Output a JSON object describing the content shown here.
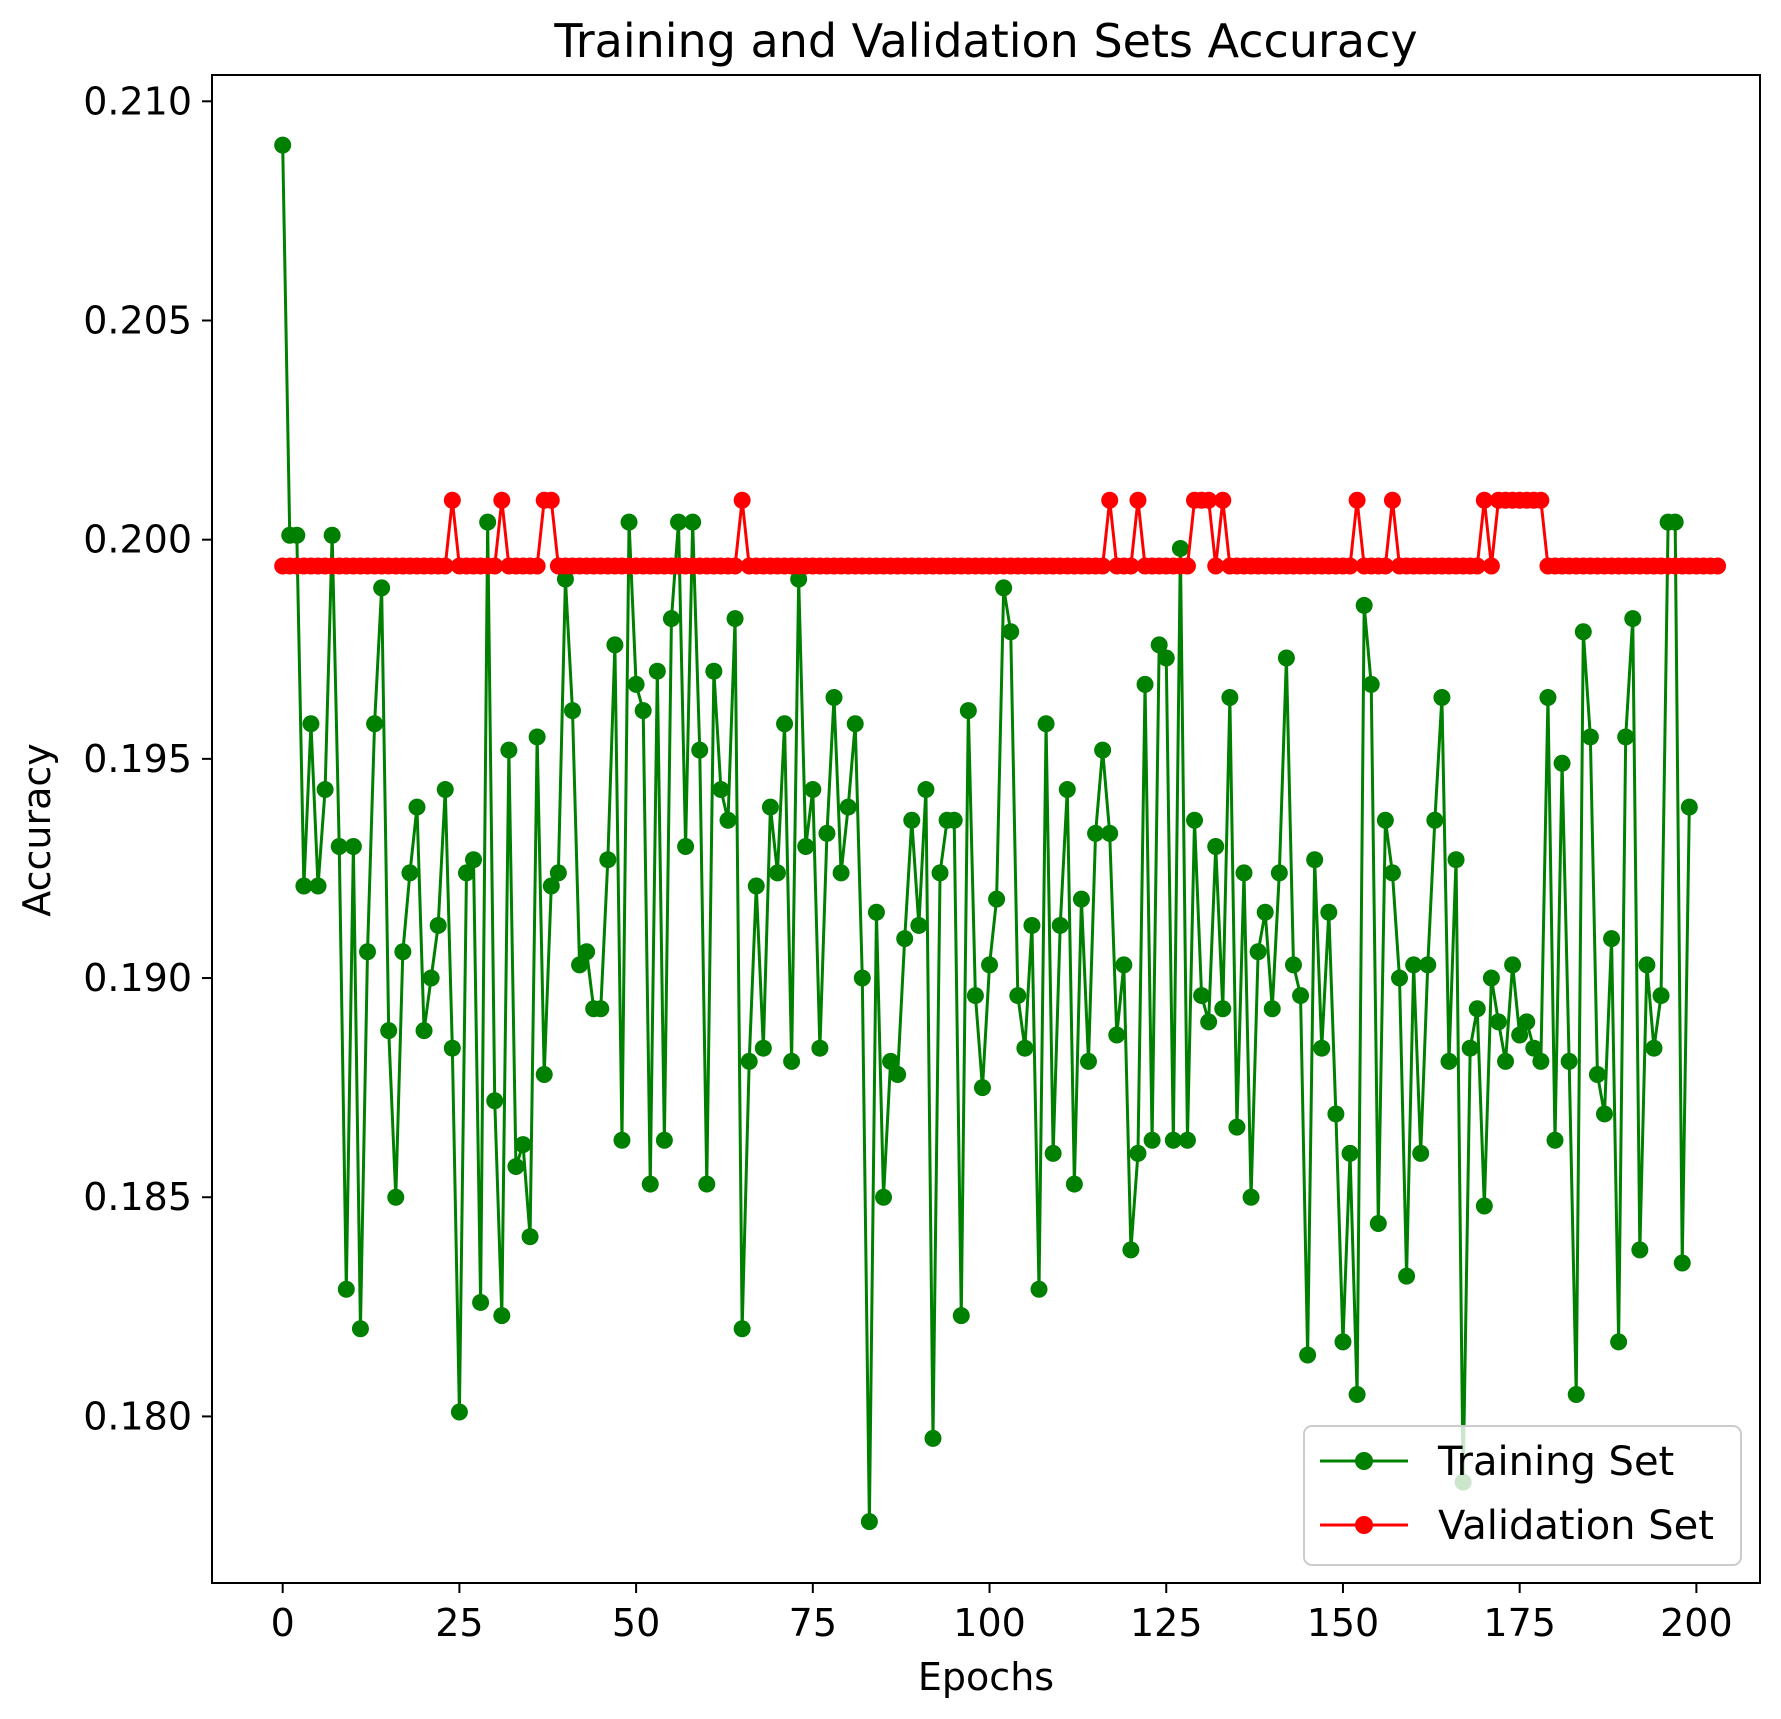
{
  "chart_data": {
    "type": "line",
    "title": "Training and Validation Sets Accuracy",
    "xlabel": "Epochs",
    "ylabel": "Accuracy",
    "xlim": [
      -10,
      209
    ],
    "ylim": [
      0.1762,
      0.2106
    ],
    "xticks": [
      0,
      25,
      50,
      75,
      100,
      125,
      150,
      175,
      200
    ],
    "yticks": [
      0.18,
      0.185,
      0.19,
      0.195,
      0.2,
      0.205,
      0.21
    ],
    "xtick_labels": [
      "0",
      "25",
      "50",
      "75",
      "100",
      "125",
      "150",
      "175",
      "200"
    ],
    "ytick_labels": [
      "0.180",
      "0.185",
      "0.190",
      "0.195",
      "0.200",
      "0.205",
      "0.210"
    ],
    "grid": false,
    "legend_position": "lower right",
    "series": [
      {
        "name": "Training Set",
        "color": "#008000",
        "marker": "circle",
        "values": [
          0.209,
          0.2001,
          0.2001,
          0.1921,
          0.1958,
          0.1921,
          0.1943,
          0.2001,
          0.193,
          0.1829,
          0.193,
          0.182,
          0.1906,
          0.1958,
          0.1989,
          0.1888,
          0.185,
          0.1906,
          0.1924,
          0.1939,
          0.1888,
          0.19,
          0.1912,
          0.1943,
          0.1884,
          0.1801,
          0.1924,
          0.1927,
          0.1826,
          0.2004,
          0.1872,
          0.1823,
          0.1952,
          0.1857,
          0.1862,
          0.1841,
          0.1955,
          0.1878,
          0.1921,
          0.1924,
          0.1991,
          0.1961,
          0.1903,
          0.1906,
          0.1893,
          0.1893,
          0.1927,
          0.1976,
          0.1863,
          0.2004,
          0.1967,
          0.1961,
          0.1853,
          0.197,
          0.1863,
          0.1982,
          0.2004,
          0.193,
          0.2004,
          0.1952,
          0.1853,
          0.197,
          0.1943,
          0.1936,
          0.1982,
          0.182,
          0.1881,
          0.1921,
          0.1884,
          0.1939,
          0.1924,
          0.1958,
          0.1881,
          0.1991,
          0.193,
          0.1943,
          0.1884,
          0.1933,
          0.1964,
          0.1924,
          0.1939,
          0.1958,
          0.19,
          0.1776,
          0.1915,
          0.185,
          0.1881,
          0.1878,
          0.1909,
          0.1936,
          0.1912,
          0.1943,
          0.1795,
          0.1924,
          0.1936,
          0.1936,
          0.1823,
          0.1961,
          0.1896,
          0.1875,
          0.1903,
          0.1918,
          0.1989,
          0.1979,
          0.1896,
          0.1884,
          0.1912,
          0.1829,
          0.1958,
          0.186,
          0.1912,
          0.1943,
          0.1853,
          0.1918,
          0.1881,
          0.1933,
          0.1952,
          0.1933,
          0.1887,
          0.1903,
          0.1838,
          0.186,
          0.1967,
          0.1863,
          0.1976,
          0.1973,
          0.1863,
          0.1998,
          0.1863,
          0.1936,
          0.1896,
          0.189,
          0.193,
          0.1893,
          0.1964,
          0.1866,
          0.1924,
          0.185,
          0.1906,
          0.1915,
          0.1893,
          0.1924,
          0.1973,
          0.1903,
          0.1896,
          0.1814,
          0.1927,
          0.1884,
          0.1915,
          0.1869,
          0.1817,
          0.186,
          0.1805,
          0.1985,
          0.1967,
          0.1844,
          0.1936,
          0.1924,
          0.19,
          0.1832,
          0.1903,
          0.186,
          0.1903,
          0.1936,
          0.1964,
          0.1881,
          0.1927,
          0.1785,
          0.1884,
          0.1893,
          0.1848,
          0.19,
          0.189,
          0.1881,
          0.1903,
          0.1887,
          0.189,
          0.1884,
          0.1881,
          0.1964,
          0.1863,
          0.1949,
          0.1881,
          0.1805,
          0.1979,
          0.1955,
          0.1878,
          0.1869,
          0.1909,
          0.1817,
          0.1955,
          0.1982,
          0.1838,
          0.1903,
          0.1884,
          0.1896,
          0.2004,
          0.2004,
          0.1835,
          0.1939
        ]
      },
      {
        "name": "Validation Set",
        "color": "#ff0000",
        "marker": "circle",
        "values": [
          0.1994,
          0.1994,
          0.1994,
          0.1994,
          0.1994,
          0.1994,
          0.1994,
          0.1994,
          0.1994,
          0.1994,
          0.1994,
          0.1994,
          0.1994,
          0.1994,
          0.1994,
          0.1994,
          0.1994,
          0.1994,
          0.1994,
          0.1994,
          0.1994,
          0.1994,
          0.1994,
          0.1994,
          0.2009,
          0.1994,
          0.1994,
          0.1994,
          0.1994,
          0.1994,
          0.1994,
          0.2009,
          0.1994,
          0.1994,
          0.1994,
          0.1994,
          0.1994,
          0.2009,
          0.2009,
          0.1994,
          0.1994,
          0.1994,
          0.1994,
          0.1994,
          0.1994,
          0.1994,
          0.1994,
          0.1994,
          0.1994,
          0.1994,
          0.1994,
          0.1994,
          0.1994,
          0.1994,
          0.1994,
          0.1994,
          0.1994,
          0.1994,
          0.1994,
          0.1994,
          0.1994,
          0.1994,
          0.1994,
          0.1994,
          0.1994,
          0.2009,
          0.1994,
          0.1994,
          0.1994,
          0.1994,
          0.1994,
          0.1994,
          0.1994,
          0.1994,
          0.1994,
          0.1994,
          0.1994,
          0.1994,
          0.1994,
          0.1994,
          0.1994,
          0.1994,
          0.1994,
          0.1994,
          0.1994,
          0.1994,
          0.1994,
          0.1994,
          0.1994,
          0.1994,
          0.1994,
          0.1994,
          0.1994,
          0.1994,
          0.1994,
          0.1994,
          0.1994,
          0.1994,
          0.1994,
          0.1994,
          0.1994,
          0.1994,
          0.1994,
          0.1994,
          0.1994,
          0.1994,
          0.1994,
          0.1994,
          0.1994,
          0.1994,
          0.1994,
          0.1994,
          0.1994,
          0.1994,
          0.1994,
          0.1994,
          0.1994,
          0.2009,
          0.1994,
          0.1994,
          0.1994,
          0.2009,
          0.1994,
          0.1994,
          0.1994,
          0.1994,
          0.1994,
          0.1994,
          0.1994,
          0.2009,
          0.2009,
          0.2009,
          0.1994,
          0.2009,
          0.1994,
          0.1994,
          0.1994,
          0.1994,
          0.1994,
          0.1994,
          0.1994,
          0.1994,
          0.1994,
          0.1994,
          0.1994,
          0.1994,
          0.1994,
          0.1994,
          0.1994,
          0.1994,
          0.1994,
          0.1994,
          0.2009,
          0.1994,
          0.1994,
          0.1994,
          0.1994,
          0.2009,
          0.1994,
          0.1994,
          0.1994,
          0.1994,
          0.1994,
          0.1994,
          0.1994,
          0.1994,
          0.1994,
          0.1994,
          0.1994,
          0.1994,
          0.2009,
          0.1994,
          0.2009,
          0.2009,
          0.2009,
          0.2009,
          0.2009,
          0.2009,
          0.2009,
          0.1994,
          0.1994,
          0.1994,
          0.1994,
          0.1994,
          0.1994,
          0.1994,
          0.1994,
          0.1994,
          0.1994,
          0.1994,
          0.1994,
          0.1994,
          0.1994,
          0.1994,
          0.1994,
          0.1994,
          0.1994,
          0.1994,
          0.1994,
          0.1994,
          0.1994,
          0.1994,
          0.1994,
          0.1994
        ]
      }
    ]
  }
}
